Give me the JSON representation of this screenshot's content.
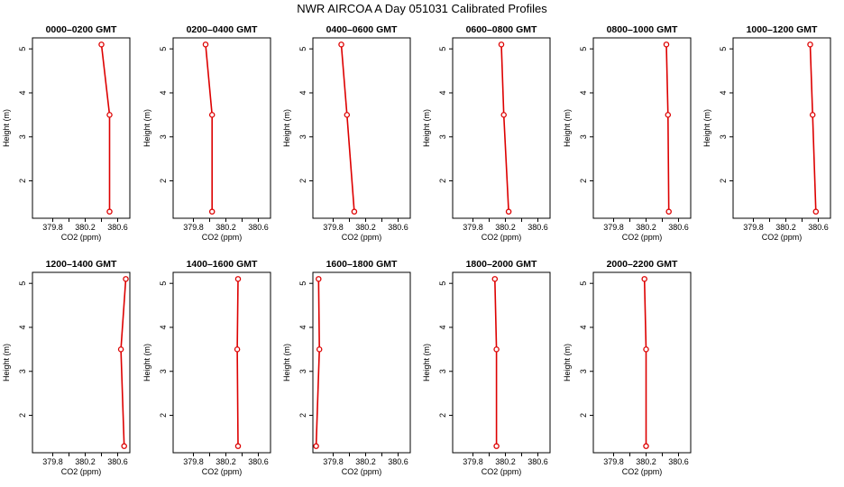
{
  "title": "NWR AIRCOA A  Day 051031  Calibrated Profiles",
  "chart_data": {
    "type": "line",
    "series_color": "#dd0000",
    "xlabel": "CO2 (ppm)",
    "ylabel": "Height (m)",
    "xlim": [
      379.55,
      380.75
    ],
    "ylim": [
      1.15,
      5.25
    ],
    "xticks": [
      "379.8",
      "380.2",
      "380.6"
    ],
    "yticks": [
      "2",
      "3",
      "4",
      "5"
    ],
    "panels": [
      {
        "title": "0000–0200 GMT",
        "points": [
          {
            "x": 380.4,
            "y": 5.1
          },
          {
            "x": 380.5,
            "y": 3.5
          },
          {
            "x": 380.5,
            "y": 1.3
          }
        ]
      },
      {
        "title": "0200–0400 GMT",
        "points": [
          {
            "x": 379.95,
            "y": 5.1
          },
          {
            "x": 380.03,
            "y": 3.5
          },
          {
            "x": 380.03,
            "y": 1.3
          }
        ]
      },
      {
        "title": "0400–0600 GMT",
        "points": [
          {
            "x": 379.9,
            "y": 5.1
          },
          {
            "x": 379.97,
            "y": 3.5
          },
          {
            "x": 380.06,
            "y": 1.3
          }
        ]
      },
      {
        "title": "0600–0800 GMT",
        "points": [
          {
            "x": 380.15,
            "y": 5.1
          },
          {
            "x": 380.18,
            "y": 3.5
          },
          {
            "x": 380.24,
            "y": 1.3
          }
        ]
      },
      {
        "title": "0800–1000 GMT",
        "points": [
          {
            "x": 380.45,
            "y": 5.1
          },
          {
            "x": 380.47,
            "y": 3.5
          },
          {
            "x": 380.48,
            "y": 1.3
          }
        ]
      },
      {
        "title": "1000–1200 GMT",
        "points": [
          {
            "x": 380.5,
            "y": 5.1
          },
          {
            "x": 380.53,
            "y": 3.5
          },
          {
            "x": 380.57,
            "y": 1.3
          }
        ]
      },
      {
        "title": "1200–1400 GMT",
        "points": [
          {
            "x": 380.7,
            "y": 5.1
          },
          {
            "x": 380.64,
            "y": 3.5
          },
          {
            "x": 380.68,
            "y": 1.3
          }
        ]
      },
      {
        "title": "1400–1600 GMT",
        "points": [
          {
            "x": 380.35,
            "y": 5.1
          },
          {
            "x": 380.34,
            "y": 3.5
          },
          {
            "x": 380.35,
            "y": 1.3
          }
        ]
      },
      {
        "title": "1600–1800 GMT",
        "points": [
          {
            "x": 379.62,
            "y": 5.1
          },
          {
            "x": 379.63,
            "y": 3.5
          },
          {
            "x": 379.59,
            "y": 1.3
          }
        ]
      },
      {
        "title": "1800–2000 GMT",
        "points": [
          {
            "x": 380.07,
            "y": 5.1
          },
          {
            "x": 380.09,
            "y": 3.5
          },
          {
            "x": 380.09,
            "y": 1.3
          }
        ]
      },
      {
        "title": "2000–2200 GMT",
        "points": [
          {
            "x": 380.18,
            "y": 5.1
          },
          {
            "x": 380.2,
            "y": 3.5
          },
          {
            "x": 380.2,
            "y": 1.3
          }
        ]
      }
    ]
  }
}
